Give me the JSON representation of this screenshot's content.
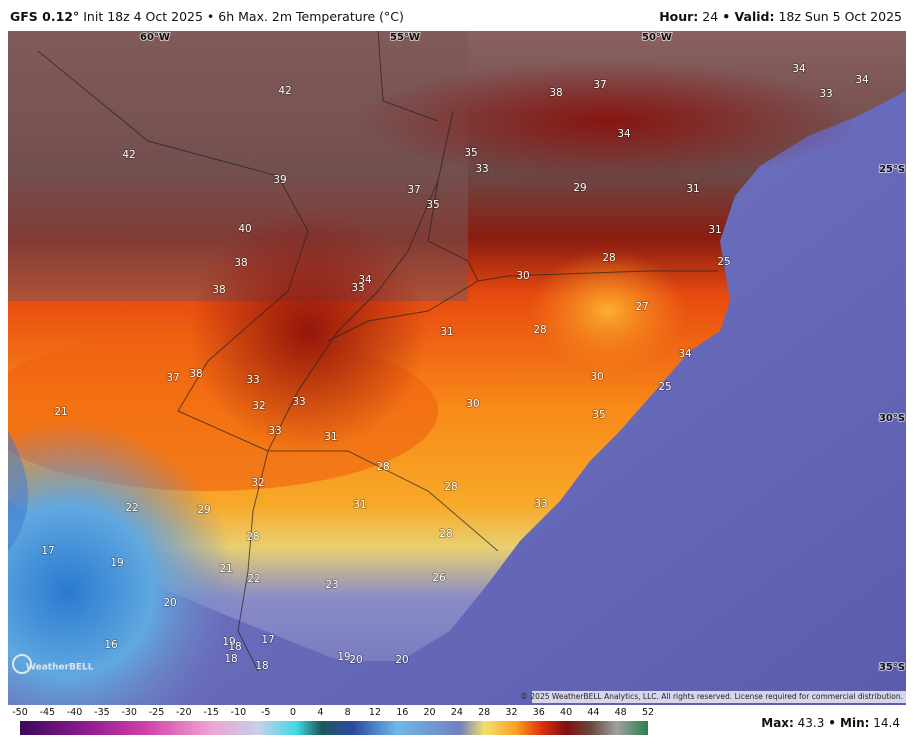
{
  "header": {
    "model": "GFS 0.12°",
    "info": "Init 18z 4 Oct 2025 • 6h Max. 2m Temperature (°C)",
    "hour_label": "Hour:",
    "hour": "24",
    "valid_label": "• Valid:",
    "valid": "18z Sun 5 Oct 2025"
  },
  "map": {
    "lon_labels": [
      "60°W",
      "55°W",
      "50°W"
    ],
    "lat_labels": [
      "25°S",
      "30°S",
      "35°S"
    ],
    "values": [
      42,
      42,
      38,
      37,
      34,
      34,
      33,
      34,
      35,
      33,
      39,
      37,
      35,
      29,
      31,
      40,
      31,
      38,
      28,
      25,
      38,
      34,
      33,
      30,
      27,
      31,
      28,
      34,
      37,
      38,
      33,
      30,
      25,
      32,
      33,
      30,
      35,
      21,
      33,
      31,
      28,
      32,
      28,
      22,
      29,
      31,
      33,
      28,
      28,
      17,
      19,
      21,
      22,
      23,
      26,
      20,
      16,
      19,
      18,
      17,
      18,
      18,
      19,
      20,
      20
    ],
    "copyright": "© 2025 WeatherBELL Analytics, LLC. All rights reserved. License required for commercial distribution.",
    "logo": "WeatherBELL"
  },
  "colorbar": {
    "ticks": [
      -50,
      -45,
      -40,
      -35,
      -30,
      -25,
      -20,
      -15,
      -10,
      -5,
      0,
      4,
      8,
      12,
      16,
      20,
      24,
      28,
      32,
      36,
      40,
      44,
      48,
      52
    ]
  },
  "stats": {
    "max_label": "Max:",
    "max": 43.3,
    "min_label": "• Min:",
    "min": 14.4
  }
}
